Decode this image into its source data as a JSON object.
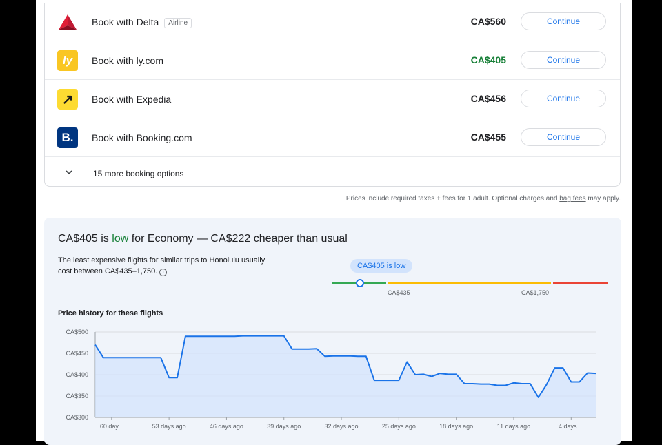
{
  "booking_options": [
    {
      "label": "Book with Delta",
      "badge": "Airline",
      "price": "CA$560",
      "low": false,
      "logo": "delta-icon",
      "logo_text": "",
      "logo_bg": "#ffffff",
      "button": "Continue"
    },
    {
      "label": "Book with ly.com",
      "badge": "",
      "price": "CA$405",
      "low": true,
      "logo": "lycom-icon",
      "logo_text": "ly",
      "logo_bg": "#f9c623",
      "button": "Continue"
    },
    {
      "label": "Book with Expedia",
      "badge": "",
      "price": "CA$456",
      "low": false,
      "logo": "expedia-icon",
      "logo_text": "↗",
      "logo_bg": "#fddb32",
      "button": "Continue"
    },
    {
      "label": "Book with Booking.com",
      "badge": "",
      "price": "CA$455",
      "low": false,
      "logo": "booking-icon",
      "logo_text": "B.",
      "logo_bg": "#003580",
      "button": "Continue"
    }
  ],
  "more_options": "15 more booking options",
  "disclaimer": {
    "before": "Prices include required taxes + fees for 1 adult. Optional charges and ",
    "link": "bag fees",
    "after": " may apply."
  },
  "insight": {
    "headline_pre": "CA$405 is ",
    "headline_low": "low",
    "headline_post": " for Economy — CA$222 cheaper than usual",
    "subtext": "The least expensive flights for similar trips to Honolulu usually cost between CA$435–1,750.",
    "tooltip": "CA$405 is low",
    "range_low": "CA$435",
    "range_high": "CA$1,750",
    "colors": {
      "low": "#34a853",
      "typical": "#fbbc04",
      "high": "#ea4335",
      "line": "#1a73e8"
    }
  },
  "price_history_title": "Price history for these flights",
  "chart_data": {
    "type": "area",
    "ylim": [
      300,
      500
    ],
    "y_ticks": [
      "CA$500",
      "CA$450",
      "CA$400",
      "CA$350",
      "CA$300"
    ],
    "y_tick_values": [
      500,
      450,
      400,
      350,
      300
    ],
    "x_ticks": [
      {
        "label": "60 day...",
        "x": 59
      },
      {
        "label": "53 days ago",
        "x": 52
      },
      {
        "label": "46 days ago",
        "x": 45
      },
      {
        "label": "39 days ago",
        "x": 38
      },
      {
        "label": "32 days ago",
        "x": 31
      },
      {
        "label": "25 days ago",
        "x": 24
      },
      {
        "label": "18 days ago",
        "x": 17
      },
      {
        "label": "11 days ago",
        "x": 10
      },
      {
        "label": "4 days ...",
        "x": 3
      }
    ],
    "xlim": [
      61,
      0
    ],
    "points": [
      [
        61,
        470
      ],
      [
        60,
        440
      ],
      [
        59,
        440
      ],
      [
        58,
        440
      ],
      [
        57,
        440
      ],
      [
        56,
        440
      ],
      [
        55,
        440
      ],
      [
        54,
        440
      ],
      [
        53,
        440
      ],
      [
        52,
        393
      ],
      [
        51,
        393
      ],
      [
        50,
        490
      ],
      [
        49,
        490
      ],
      [
        48,
        490
      ],
      [
        47,
        490
      ],
      [
        46,
        490
      ],
      [
        45,
        490
      ],
      [
        44,
        490
      ],
      [
        43,
        491
      ],
      [
        42,
        491
      ],
      [
        41,
        491
      ],
      [
        40,
        491
      ],
      [
        39,
        491
      ],
      [
        38,
        491
      ],
      [
        37,
        460
      ],
      [
        36,
        460
      ],
      [
        35,
        460
      ],
      [
        34,
        461
      ],
      [
        33,
        443
      ],
      [
        32,
        444
      ],
      [
        31,
        444
      ],
      [
        30,
        444
      ],
      [
        29,
        443
      ],
      [
        28,
        443
      ],
      [
        27,
        387
      ],
      [
        26,
        387
      ],
      [
        25,
        387
      ],
      [
        24,
        387
      ],
      [
        23,
        430
      ],
      [
        22,
        400
      ],
      [
        21,
        401
      ],
      [
        20,
        396
      ],
      [
        19,
        403
      ],
      [
        18,
        401
      ],
      [
        17,
        401
      ],
      [
        16,
        379
      ],
      [
        15,
        379
      ],
      [
        14,
        378
      ],
      [
        13,
        378
      ],
      [
        12,
        375
      ],
      [
        11,
        375
      ],
      [
        10,
        381
      ],
      [
        9,
        379
      ],
      [
        8,
        379
      ],
      [
        7,
        347
      ],
      [
        6,
        377
      ],
      [
        5,
        416
      ],
      [
        4,
        416
      ],
      [
        3,
        383
      ],
      [
        2,
        383
      ],
      [
        1,
        404
      ],
      [
        0,
        403
      ]
    ]
  }
}
